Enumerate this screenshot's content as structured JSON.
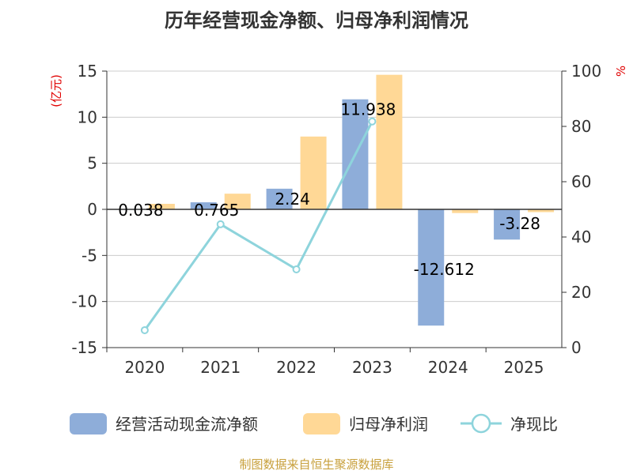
{
  "title": "历年经营现金净额、归母净利润情况",
  "source": "制图数据来自恒生聚源数据库",
  "chart_data": {
    "type": "bar",
    "categories": [
      "2020",
      "2021",
      "2022",
      "2023",
      "2024",
      "2025"
    ],
    "series": [
      {
        "name": "经营活动现金流净额",
        "kind": "bar",
        "axis": "left",
        "color": "#8eadd9",
        "values": [
          0.038,
          0.765,
          2.24,
          11.938,
          -12.612,
          -3.28
        ],
        "labels": [
          "0.038",
          "0.765",
          "2.24",
          "11.938",
          "-12.612",
          "-3.28"
        ]
      },
      {
        "name": "归母净利润",
        "kind": "bar",
        "axis": "left",
        "color": "#ffd896",
        "values": [
          0.6,
          1.7,
          7.9,
          14.6,
          -0.4,
          -0.3
        ]
      },
      {
        "name": "净现比",
        "kind": "line",
        "axis": "right",
        "color": "#8ed4dc",
        "values": [
          6.3,
          44.6,
          28.3,
          81.8,
          null,
          null
        ]
      }
    ],
    "left_axis": {
      "label": "(亿元)",
      "min": -15,
      "max": 15,
      "ticks": [
        15,
        10,
        5,
        0,
        -5,
        -10,
        -15
      ]
    },
    "right_axis": {
      "label": "%",
      "min": 0,
      "max": 100,
      "ticks": [
        100,
        80,
        60,
        40,
        20,
        0
      ]
    },
    "grid": true,
    "legend_position": "bottom"
  }
}
